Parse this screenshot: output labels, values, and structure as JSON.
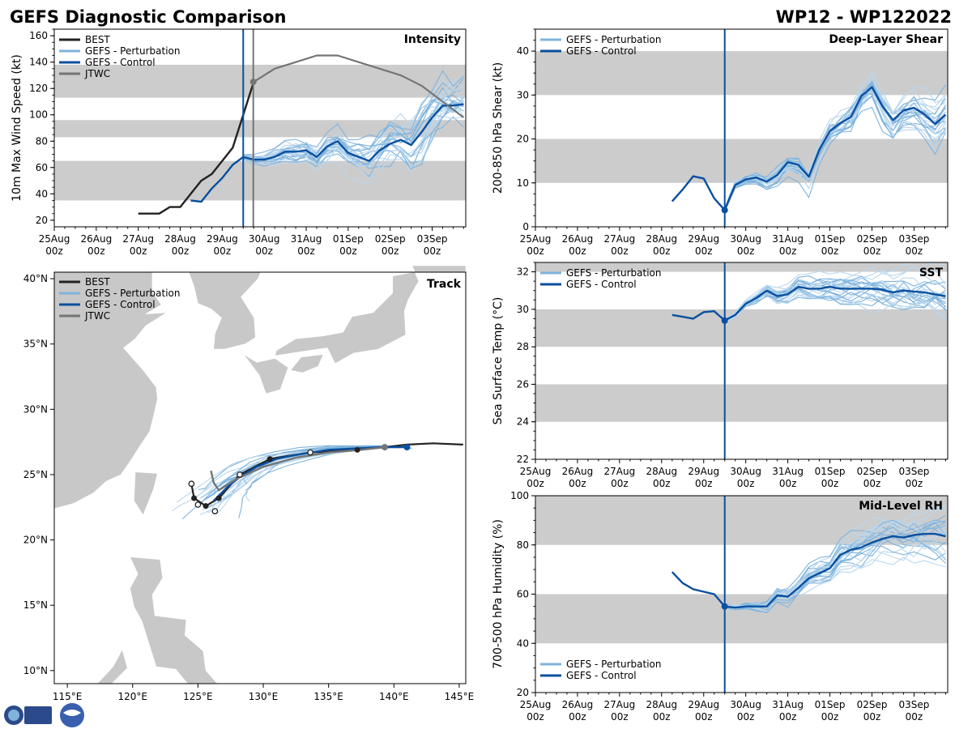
{
  "header": {
    "title": "GEFS Diagnostic Comparison",
    "storm_id": "WP12 - WP122022"
  },
  "colors": {
    "best": "#222222",
    "perturbation": "#7fb3dc",
    "perturbation_light": "#b9d7ee",
    "control": "#0a4fa0",
    "jtwc": "#757575",
    "band": "#cccccc",
    "land": "#c8c8c8"
  },
  "time_axis": {
    "labels": [
      "25Aug\n00z",
      "26Aug\n00z",
      "27Aug\n00z",
      "28Aug\n00z",
      "29Aug\n00z",
      "30Aug\n00z",
      "31Aug\n00z",
      "01Sep\n00z",
      "02Sep\n00z",
      "03Sep\n00z"
    ],
    "range_days": [
      0,
      9.8
    ],
    "init_day": 4.5,
    "jtwc_init_day": 4.74
  },
  "chart_data": [
    {
      "id": "intensity",
      "type": "line",
      "title": "Intensity",
      "ylabel": "10m Max Wind Speed (kt)",
      "ylim": [
        15,
        165
      ],
      "yticks": [
        20,
        40,
        60,
        80,
        100,
        120,
        140,
        160
      ],
      "bands": [
        [
          35,
          65
        ],
        [
          83,
          96
        ],
        [
          113,
          138
        ]
      ],
      "legend": [
        "BEST",
        "GEFS - Perturbation",
        "GEFS - Control",
        "JTWC"
      ],
      "series": [
        {
          "name": "BEST",
          "x": [
            2.0,
            2.5,
            2.75,
            3.0,
            3.25,
            3.5,
            3.75,
            4.0,
            4.25,
            4.5,
            4.75
          ],
          "values": [
            25,
            25,
            30,
            30,
            40,
            50,
            55,
            65,
            75,
            100,
            125
          ]
        },
        {
          "name": "GEFS - Control",
          "x": [
            3.25,
            3.5,
            3.75,
            4.0,
            4.25,
            4.5,
            4.75,
            5.0,
            5.25,
            5.5,
            5.75,
            6.0,
            6.25,
            6.5,
            6.75,
            7.0,
            7.25,
            7.5,
            7.75,
            8.0,
            8.25,
            8.5,
            8.75,
            9.0,
            9.25,
            9.5,
            9.75
          ],
          "values": [
            35,
            34,
            44,
            52,
            62,
            68,
            66,
            66,
            68,
            72,
            72,
            73,
            68,
            76,
            80,
            71,
            68,
            65,
            73,
            78,
            81,
            77,
            87,
            98,
            107,
            107,
            108
          ]
        },
        {
          "name": "JTWC",
          "x": [
            4.75,
            5.0,
            5.25,
            5.75,
            6.25,
            6.75,
            7.25,
            7.75,
            8.25,
            8.75,
            9.25,
            9.75
          ],
          "values": [
            125,
            130,
            135,
            140,
            145,
            145,
            140,
            135,
            130,
            122,
            110,
            98
          ]
        }
      ],
      "perturbation_seed": 11
    },
    {
      "id": "shear",
      "type": "line",
      "title": "Deep-Layer Shear",
      "ylabel": "200-850 hPa Shear (kt)",
      "ylim": [
        0,
        45
      ],
      "yticks": [
        0,
        10,
        20,
        30,
        40
      ],
      "bands": [
        [
          10,
          20
        ],
        [
          30,
          40
        ]
      ],
      "legend": [
        "GEFS - Perturbation",
        "GEFS - Control"
      ],
      "series": [
        {
          "name": "GEFS - Control",
          "x": [
            3.25,
            3.5,
            3.75,
            4.0,
            4.25,
            4.5,
            4.6,
            4.75,
            5.0,
            5.25,
            5.5,
            5.75,
            6.0,
            6.25,
            6.5,
            6.75,
            7.0,
            7.25,
            7.5,
            7.75,
            8.0,
            8.25,
            8.5,
            8.75,
            9.0,
            9.25,
            9.5,
            9.75
          ],
          "values": [
            5.8,
            8.5,
            11.5,
            11.0,
            6.5,
            3.8,
            6.2,
            9.5,
            10.8,
            11.2,
            10.3,
            11.8,
            14.7,
            14.1,
            11.4,
            17.6,
            21.8,
            23.6,
            25.0,
            29.8,
            31.8,
            27.4,
            24.3,
            26.5,
            27.1,
            25.6,
            23.4,
            25.5
          ]
        }
      ],
      "init_value": 3.8,
      "perturbation_seed": 23
    },
    {
      "id": "sst",
      "type": "line",
      "title": "SST",
      "ylabel": "Sea Surface Temp (°C)",
      "ylim": [
        22,
        32.5
      ],
      "yticks": [
        22,
        24,
        26,
        28,
        30,
        32
      ],
      "bands": [
        [
          24,
          26
        ],
        [
          28,
          30
        ],
        [
          32,
          32.5
        ]
      ],
      "legend": [
        "GEFS - Perturbation",
        "GEFS - Control"
      ],
      "series": [
        {
          "name": "GEFS - Control",
          "x": [
            3.25,
            3.5,
            3.75,
            4.0,
            4.25,
            4.5,
            4.75,
            5.0,
            5.25,
            5.5,
            5.75,
            6.0,
            6.25,
            6.5,
            6.75,
            7.0,
            7.25,
            7.5,
            7.75,
            8.0,
            8.25,
            8.5,
            8.75,
            9.0,
            9.25,
            9.5,
            9.75
          ],
          "values": [
            29.7,
            29.6,
            29.5,
            29.85,
            29.9,
            29.4,
            29.7,
            30.3,
            30.6,
            31.0,
            30.7,
            30.8,
            31.2,
            31.1,
            31.1,
            31.2,
            31.1,
            31.1,
            31.1,
            31.1,
            31.05,
            30.9,
            31.0,
            30.95,
            30.9,
            30.8,
            30.7
          ]
        }
      ],
      "init_value": 29.4,
      "perturbation_seed": 37
    },
    {
      "id": "rh",
      "type": "line",
      "title": "Mid-Level RH",
      "ylabel": "700-500 hPa Humidity (%)",
      "ylim": [
        20,
        100
      ],
      "yticks": [
        20,
        40,
        60,
        80,
        100
      ],
      "bands": [
        [
          40,
          60
        ],
        [
          80,
          100
        ]
      ],
      "legend": [
        "GEFS - Perturbation",
        "GEFS - Control"
      ],
      "series": [
        {
          "name": "GEFS - Control",
          "x": [
            3.25,
            3.5,
            3.75,
            4.0,
            4.25,
            4.5,
            4.75,
            5.0,
            5.25,
            5.5,
            5.75,
            6.0,
            6.25,
            6.5,
            6.75,
            7.0,
            7.25,
            7.5,
            7.75,
            8.0,
            8.25,
            8.5,
            8.75,
            9.0,
            9.25,
            9.5,
            9.75
          ],
          "values": [
            69,
            64.5,
            62,
            61,
            60,
            55,
            54.5,
            55,
            55,
            55,
            59.5,
            59,
            62.5,
            66.5,
            68.5,
            70.5,
            76,
            78,
            79,
            81,
            82.5,
            83.5,
            83,
            84,
            84.5,
            84.5,
            83.5
          ]
        }
      ],
      "init_value": 55,
      "perturbation_seed": 51
    },
    {
      "id": "track",
      "type": "scatter",
      "title": "Track",
      "xlim": [
        114,
        145.5
      ],
      "ylim": [
        9,
        40.5
      ],
      "xtick_labels": [
        "115°E",
        "120°E",
        "125°E",
        "130°E",
        "135°E",
        "140°E",
        "145°E"
      ],
      "xtick_values": [
        115,
        120,
        125,
        130,
        135,
        140,
        145
      ],
      "ytick_labels": [
        "10°N",
        "15°N",
        "20°N",
        "25°N",
        "30°N",
        "35°N",
        "40°N"
      ],
      "ytick_values": [
        10,
        15,
        20,
        25,
        30,
        35,
        40
      ],
      "legend": [
        "BEST",
        "GEFS - Perturbation",
        "GEFS - Control",
        "JTWC"
      ],
      "series": [
        {
          "name": "BEST",
          "lon": [
            145.3,
            143.0,
            141.0,
            139.3,
            137.2,
            133.6,
            130.5,
            128.2,
            126.6,
            125.6,
            124.7,
            124.5
          ],
          "lat": [
            27.3,
            27.4,
            27.3,
            27.1,
            26.9,
            26.7,
            26.2,
            25.0,
            23.2,
            22.6,
            23.2,
            24.3
          ],
          "markers_filled": [
            [
              137.2,
              26.9
            ],
            [
              130.5,
              26.2
            ],
            [
              126.6,
              23.2
            ],
            [
              125.6,
              22.6
            ],
            [
              124.7,
              23.2
            ]
          ],
          "markers_open": [
            [
              133.6,
              26.7
            ],
            [
              128.2,
              25.0
            ],
            [
              126.3,
              22.2
            ],
            [
              125.0,
              22.7
            ],
            [
              124.5,
              24.3
            ]
          ]
        },
        {
          "name": "GEFS - Control",
          "lon": [
            141.0,
            139.0,
            137.0,
            135.0,
            133.0,
            131.0,
            129.5,
            128.3,
            127.2,
            126.6,
            126.2
          ],
          "lat": [
            27.1,
            27.1,
            27.0,
            26.9,
            26.6,
            26.2,
            25.6,
            24.9,
            24.0,
            23.4,
            23.0
          ]
        },
        {
          "name": "JTWC",
          "lon": [
            139.3,
            137.5,
            135.0,
            132.5,
            130.0,
            128.0,
            126.6,
            126.2,
            126.0
          ],
          "lat": [
            27.1,
            26.9,
            26.7,
            26.3,
            25.6,
            24.7,
            23.8,
            24.4,
            25.3
          ]
        }
      ],
      "perturbation_seed": 71
    }
  ]
}
